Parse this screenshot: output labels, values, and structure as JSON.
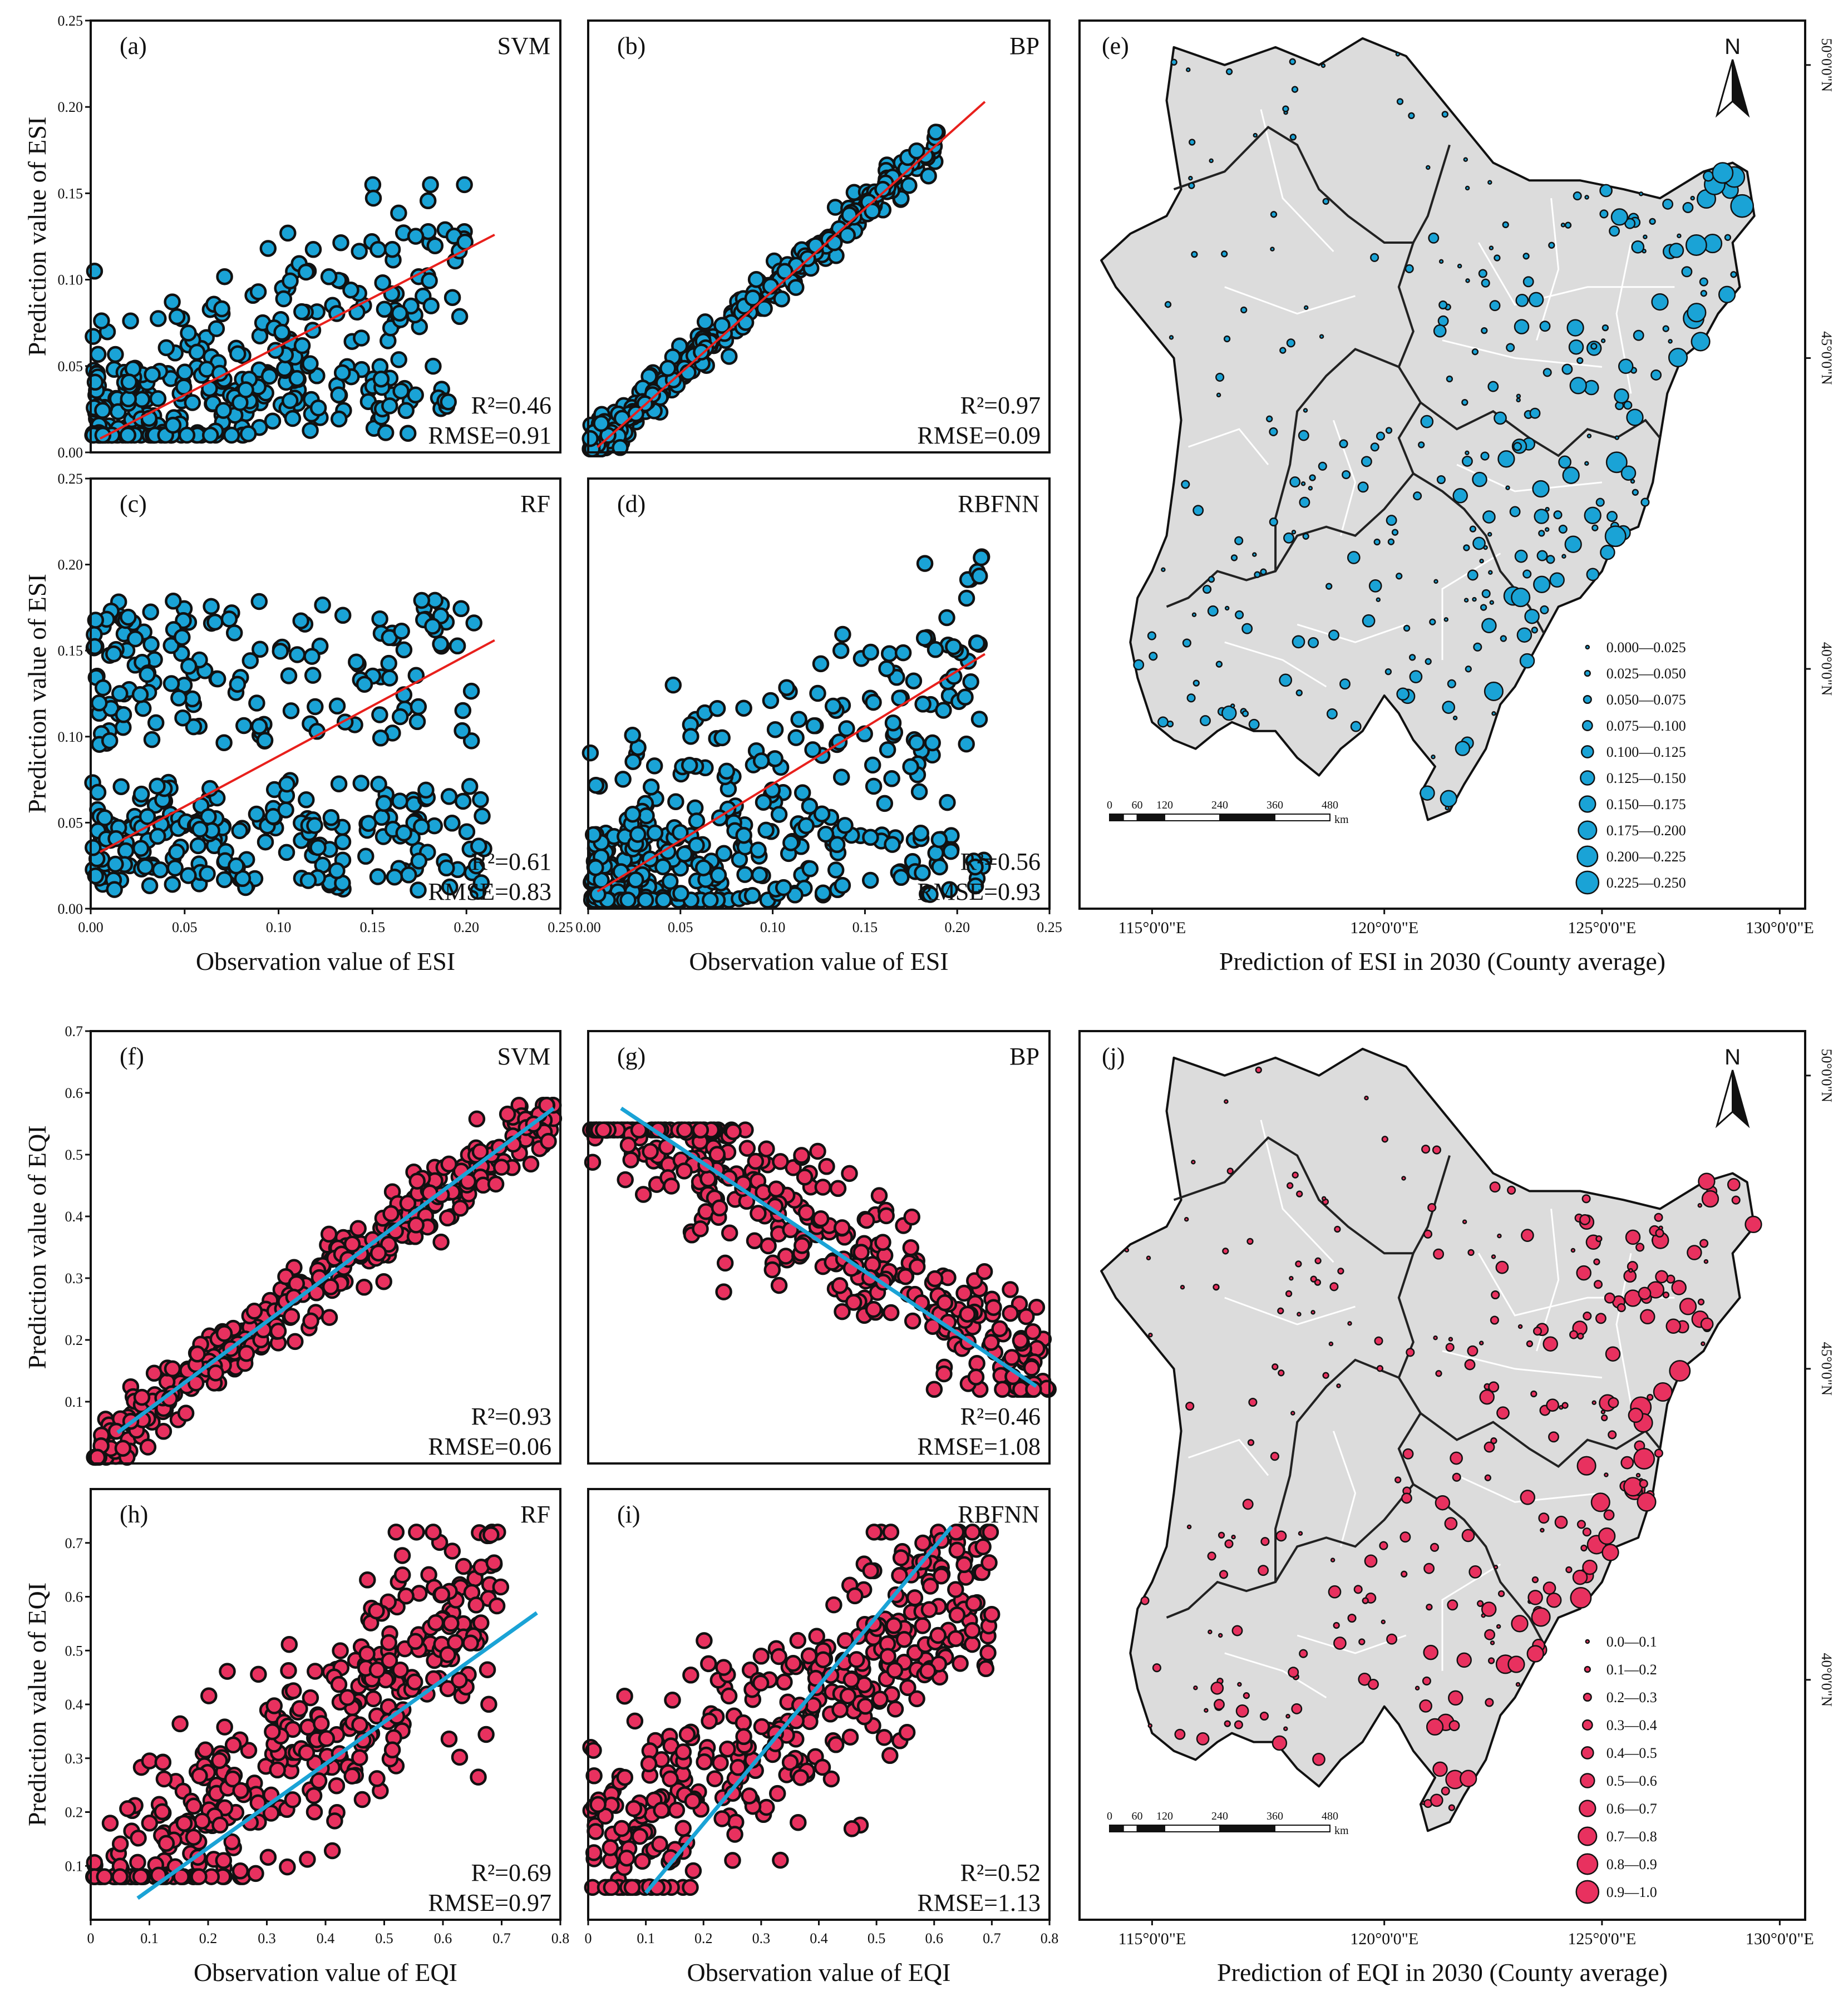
{
  "figure": {
    "colors": {
      "esi_fill": "#1aa3d6",
      "eqi_fill": "#e8315f",
      "esi_fit": "#e8201c",
      "eqi_fit": "#1aa3d6",
      "marker_edge": "#111111",
      "land": "#dcdcdc"
    }
  },
  "chart_data": [
    {
      "id": "a",
      "type": "scatter",
      "label": "(a)",
      "model": "SVM",
      "r2": "R²=0.46",
      "rmse": "RMSE=0.91",
      "ylabel": "Prediction value of ESI",
      "xlabel": "",
      "xlim": [
        0,
        0.25
      ],
      "ylim": [
        0,
        0.25
      ],
      "xticks": [],
      "yticks": [
        "0.00",
        "0.05",
        "0.10",
        "0.15",
        "0.20",
        "0.25"
      ],
      "fit": [
        [
          0.005,
          0.008
        ],
        [
          0.215,
          0.126
        ]
      ],
      "scatter": {
        "n": 360,
        "seed": 11,
        "mode": "spread",
        "slope": 0.56,
        "intercept": 0.006,
        "noise": 0.032,
        "xmax": 0.2,
        "ymin": 0.01,
        "ymax": 0.155,
        "skew": 1.6
      }
    },
    {
      "id": "b",
      "type": "scatter",
      "label": "(b)",
      "model": "BP",
      "r2": "R²=0.97",
      "rmse": "RMSE=0.09",
      "ylabel": "",
      "xlabel": "",
      "xlim": [
        0,
        0.25
      ],
      "ylim": [
        0,
        0.25
      ],
      "xticks": [],
      "yticks": [],
      "fit": [
        [
          0.005,
          0.003
        ],
        [
          0.215,
          0.203
        ]
      ],
      "scatter": {
        "n": 360,
        "seed": 23,
        "mode": "tight",
        "slope": 0.93,
        "intercept": 0.002,
        "noise": 0.006,
        "xmax": 0.19,
        "ymin": 0.002,
        "ymax": 0.192,
        "skew": 1.7
      }
    },
    {
      "id": "c",
      "type": "scatter",
      "label": "(c)",
      "model": "RF",
      "r2": "R²=0.61",
      "rmse": "RMSE=0.83",
      "ylabel": "Prediction value of ESI",
      "xlabel": "Observation value of ESI",
      "xlim": [
        0,
        0.25
      ],
      "ylim": [
        0,
        0.25
      ],
      "xticks": [
        "0.00",
        "0.05",
        "0.10",
        "0.15",
        "0.20",
        "0.25"
      ],
      "yticks": [
        "0.00",
        "0.05",
        "0.10",
        "0.15",
        "0.20",
        "0.25"
      ],
      "fit": [
        [
          0.005,
          0.033
        ],
        [
          0.215,
          0.156
        ]
      ],
      "scatter": {
        "n": 380,
        "seed": 37,
        "mode": "bands",
        "slope": 0.57,
        "intercept": 0.03,
        "noise": 0.03,
        "xmax": 0.21,
        "ymin": 0.01,
        "ymax": 0.18,
        "skew": 1.3
      }
    },
    {
      "id": "d",
      "type": "scatter",
      "label": "(d)",
      "model": "RBFNN",
      "r2": "R²=0.56",
      "rmse": "RMSE=0.93",
      "ylabel": "",
      "xlabel": "Observation value of ESI",
      "xlim": [
        0,
        0.25
      ],
      "ylim": [
        0,
        0.25
      ],
      "xticks": [
        "0.00",
        "0.05",
        "0.10",
        "0.15",
        "0.20",
        "0.25"
      ],
      "yticks": [],
      "fit": [
        [
          0.005,
          0.01
        ],
        [
          0.215,
          0.148
        ]
      ],
      "scatter": {
        "n": 380,
        "seed": 41,
        "mode": "spread",
        "slope": 0.64,
        "intercept": 0.008,
        "noise": 0.038,
        "xmax": 0.215,
        "ymin": 0.005,
        "ymax": 0.215,
        "skew": 1.5
      }
    },
    {
      "id": "f",
      "type": "scatter",
      "label": "(f)",
      "model": "SVM",
      "r2": "R²=0.93",
      "rmse": "RMSE=0.06",
      "ylabel": "Prediction value of EQI",
      "xlabel": "",
      "xlim": [
        0,
        0.7
      ],
      "ylim": [
        0,
        0.7
      ],
      "xticks": [],
      "yticks": [
        "0.1",
        "0.2",
        "0.3",
        "0.4",
        "0.5",
        "0.6",
        "0.7"
      ],
      "fit": [
        [
          0.04,
          0.05
        ],
        [
          0.69,
          0.575
        ]
      ],
      "scatter": {
        "n": 360,
        "seed": 53,
        "mode": "tight",
        "slope": 0.81,
        "intercept": 0.015,
        "noise": 0.028,
        "xmax": 0.69,
        "ymin": 0.01,
        "ymax": 0.58,
        "skew": 1.0
      }
    },
    {
      "id": "g",
      "type": "scatter",
      "label": "(g)",
      "model": "BP",
      "r2": "R²=0.46",
      "rmse": "RMSE=1.08",
      "ylabel": "",
      "xlabel": "",
      "xlim": [
        0,
        0.7
      ],
      "ylim": [
        0,
        0.7
      ],
      "xticks": [],
      "yticks": [],
      "fit": [
        [
          0.05,
          0.575
        ],
        [
          0.68,
          0.125
        ]
      ],
      "scatter": {
        "n": 360,
        "seed": 67,
        "mode": "negative",
        "slope": -0.69,
        "intercept": 0.61,
        "noise": 0.055,
        "xmax": 0.7,
        "ymin": 0.12,
        "ymax": 0.54,
        "skew": 1.0
      }
    },
    {
      "id": "h",
      "type": "scatter",
      "label": "(h)",
      "model": "RF",
      "r2": "R²=0.69",
      "rmse": "RMSE=0.97",
      "ylabel": "Prediction value of EQI",
      "xlabel": "Observation value of EQI",
      "xlim": [
        0,
        0.8
      ],
      "ylim": [
        0,
        0.8
      ],
      "xticks": [
        "0",
        "0.1",
        "0.2",
        "0.3",
        "0.4",
        "0.5",
        "0.6",
        "0.7",
        "0.8"
      ],
      "yticks": [
        "0.1",
        "0.2",
        "0.3",
        "0.4",
        "0.5",
        "0.6",
        "0.7"
      ],
      "fit": [
        [
          0.08,
          0.04
        ],
        [
          0.76,
          0.57
        ]
      ],
      "scatter": {
        "n": 380,
        "seed": 71,
        "mode": "spread",
        "slope": 0.85,
        "intercept": 0.02,
        "noise": 0.1,
        "xmax": 0.7,
        "ymin": 0.08,
        "ymax": 0.72,
        "skew": 1.0
      }
    },
    {
      "id": "i",
      "type": "scatter",
      "label": "(i)",
      "model": "RBFNN",
      "r2": "R²=0.52",
      "rmse": "RMSE=1.13",
      "ylabel": "",
      "xlabel": "Observation value of EQI",
      "xlim": [
        0,
        0.8
      ],
      "ylim": [
        0,
        0.8
      ],
      "xticks": [
        "0",
        "0.1",
        "0.2",
        "0.3",
        "0.4",
        "0.5",
        "0.6",
        "0.7",
        "0.8"
      ],
      "yticks": [],
      "fit": [
        [
          0.1,
          0.05
        ],
        [
          0.63,
          0.73
        ]
      ],
      "scatter": {
        "n": 380,
        "seed": 83,
        "mode": "spread",
        "slope": 0.75,
        "intercept": 0.12,
        "noise": 0.1,
        "xmax": 0.7,
        "ymin": 0.06,
        "ymax": 0.72,
        "skew": 1.0
      }
    }
  ],
  "maps": [
    {
      "id": "e",
      "label": "(e)",
      "north": "N",
      "title": "Prediction of ESI in 2030 (County average)",
      "lon_labels": [
        "115°0'0\"E",
        "120°0'0\"E",
        "125°0'0\"E",
        "130°0'0\"E"
      ],
      "lat_labels": [
        "50°0'0\"N",
        "45°0'0\"N",
        "40°0'0\"N"
      ],
      "scale_ticks": [
        "0",
        "60",
        "120",
        "240",
        "360",
        "480"
      ],
      "scale_unit": "km",
      "legend": [
        "0.000—0.025",
        "0.025—0.050",
        "0.050—0.075",
        "0.075—0.100",
        "0.100—0.125",
        "0.125—0.150",
        "0.150—0.175",
        "0.175—0.200",
        "0.200—0.225",
        "0.225—0.250"
      ],
      "seed": 101,
      "n_points": 300
    },
    {
      "id": "j",
      "label": "(j)",
      "north": "N",
      "title": "Prediction of EQI in 2030 (County average)",
      "lon_labels": [
        "115°0'0\"E",
        "120°0'0\"E",
        "125°0'0\"E",
        "130°0'0\"E"
      ],
      "lat_labels": [
        "50°0'0\"N",
        "45°0'0\"N",
        "40°0'0\"N"
      ],
      "scale_ticks": [
        "0",
        "60",
        "120",
        "240",
        "360",
        "480"
      ],
      "scale_unit": "km",
      "legend": [
        "0.0—0.1",
        "0.1—0.2",
        "0.2—0.3",
        "0.3—0.4",
        "0.4—0.5",
        "0.5—0.6",
        "0.6—0.7",
        "0.7—0.8",
        "0.8—0.9",
        "0.9—1.0"
      ],
      "seed": 211,
      "n_points": 300
    }
  ]
}
